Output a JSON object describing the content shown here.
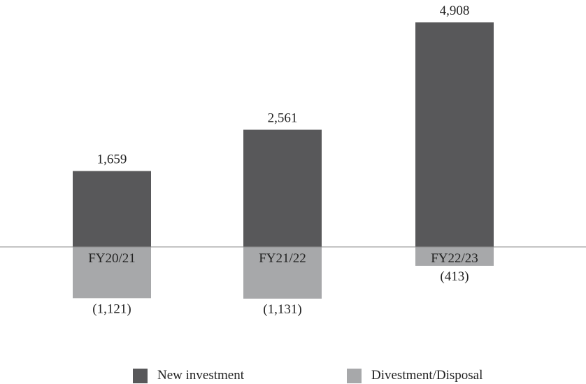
{
  "chart_data": {
    "type": "bar",
    "stacked": true,
    "categories": [
      "FY20/21",
      "FY21/22",
      "FY22/23"
    ],
    "series": [
      {
        "name": "New investment",
        "color": "#58585a",
        "values": [
          1659,
          2561,
          4908
        ],
        "labels": [
          "1,659",
          "2,561",
          "4,908"
        ]
      },
      {
        "name": "Divestment/Disposal",
        "color": "#a7a8aa",
        "values": [
          -1121,
          -1131,
          -413
        ],
        "labels": [
          "(1,121)",
          "(1,131)",
          "(413)"
        ]
      }
    ],
    "title": "",
    "xlabel": "",
    "ylabel": "",
    "ylim": [
      -1500,
      5100
    ],
    "grid": false,
    "legend_position": "bottom"
  }
}
